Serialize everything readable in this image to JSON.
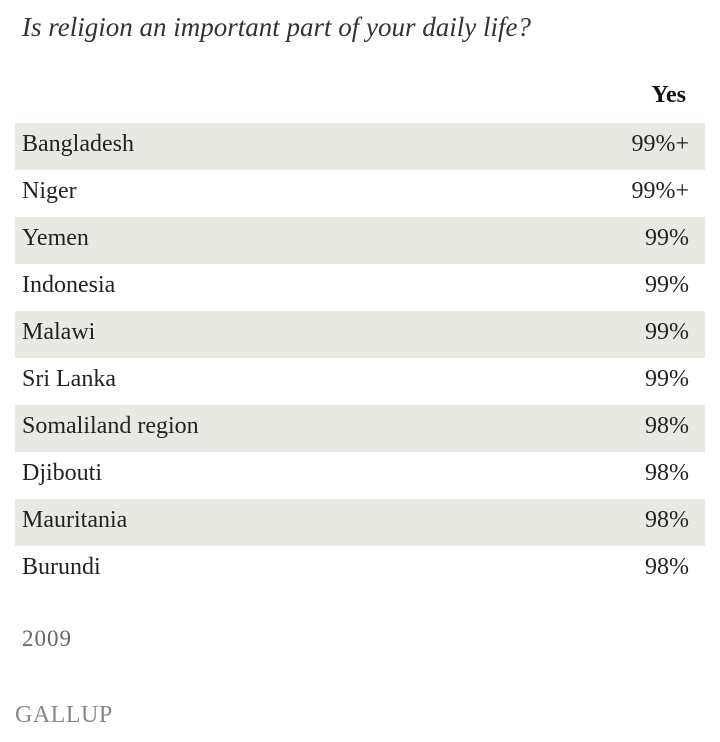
{
  "header": {
    "title": "Is religion an important part of your daily life?"
  },
  "table": {
    "columns": [
      "Yes"
    ],
    "rows": [
      [
        "Bangladesh",
        "99%+"
      ],
      [
        "Niger",
        "99%+"
      ],
      [
        "Yemen",
        "99%"
      ],
      [
        "Indonesia",
        "99%"
      ],
      [
        "Malawi",
        "99%"
      ],
      [
        "Sri Lanka",
        "99%"
      ],
      [
        "Somaliland region",
        "98%"
      ],
      [
        "Djibouti",
        "98%"
      ],
      [
        "Mauritania",
        "98%"
      ],
      [
        "Burundi",
        "98%"
      ]
    ]
  },
  "footer": {
    "year": "2009",
    "source": "GALLUP"
  }
}
